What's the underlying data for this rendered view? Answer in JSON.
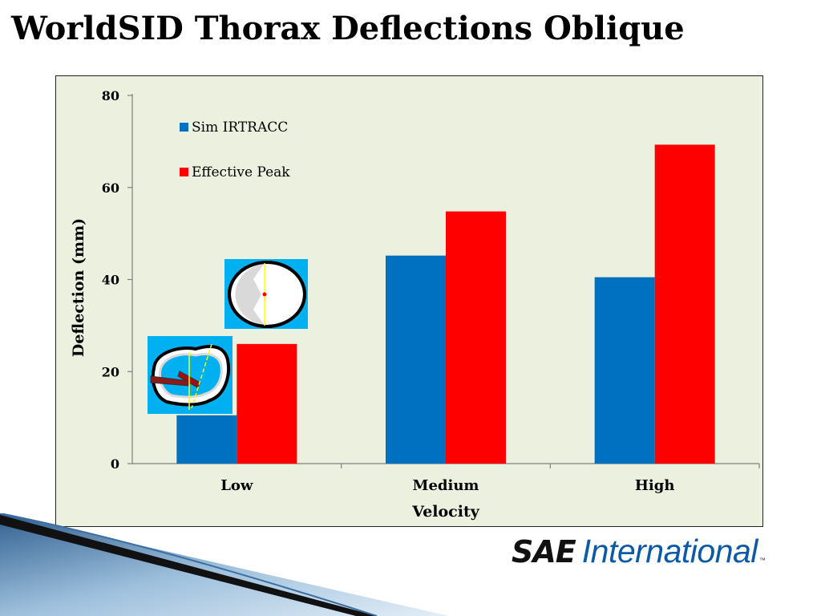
{
  "slide": {
    "title": "WorldSID Thorax Deflections Oblique"
  },
  "logo": {
    "mark": "SAE",
    "word": "International",
    "tm": "™"
  },
  "chart_data": {
    "type": "bar",
    "categories": [
      "Low",
      "Medium",
      "High"
    ],
    "series": [
      {
        "name": "Sim IRTRACC",
        "values": [
          10.5,
          45.2,
          40.5
        ],
        "color": "#0070c0"
      },
      {
        "name": "Effective Peak",
        "values": [
          26,
          54.8,
          69.3
        ],
        "color": "#ff0000"
      }
    ],
    "xlabel": "Velocity",
    "ylabel": "Deflection (mm)",
    "ylim": [
      0,
      80
    ],
    "yticks": [
      0,
      20,
      40,
      60,
      80
    ],
    "grid": false,
    "legend_position": "top-left",
    "plot_background": "#ebf1de"
  }
}
